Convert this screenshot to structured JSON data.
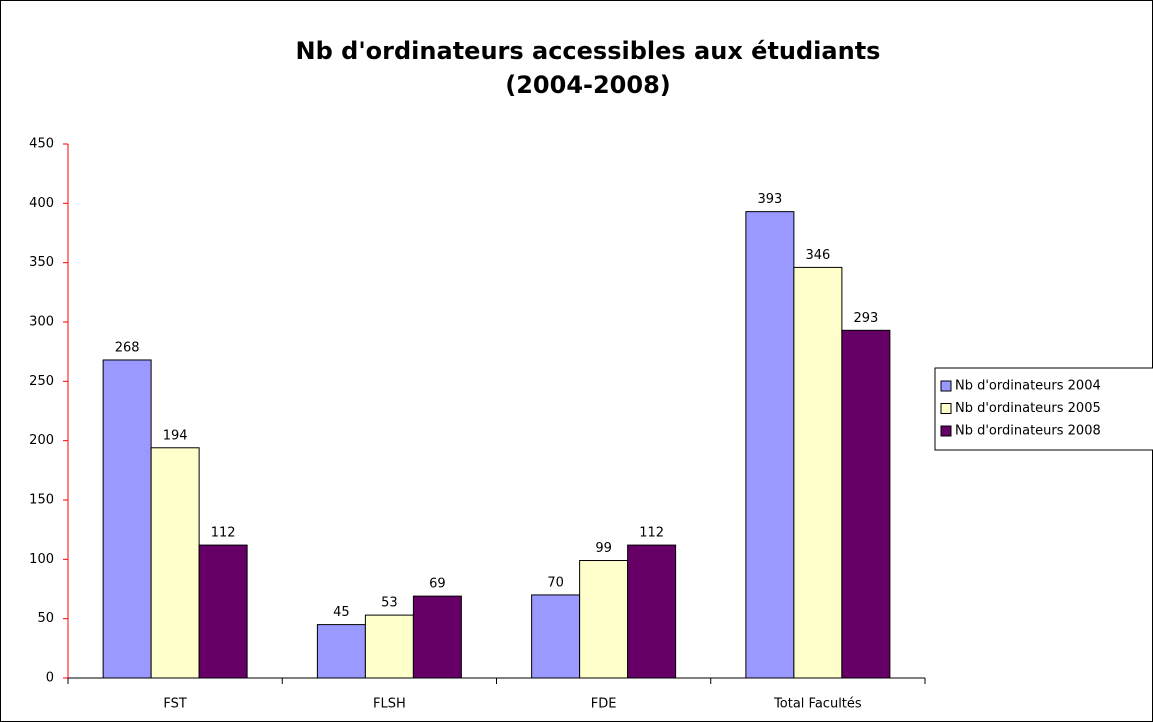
{
  "chart_data": {
    "type": "bar",
    "title": [
      "Nb d'ordinateurs accessibles aux étudiants",
      "(2004-2008)"
    ],
    "categories": [
      "FST",
      "FLSH",
      "FDE",
      "Total Facultés"
    ],
    "series": [
      {
        "name": "Nb d'ordinateurs 2004",
        "color": "#9999ff",
        "values": [
          268,
          45,
          70,
          393
        ]
      },
      {
        "name": "Nb d'ordinateurs 2005",
        "color": "#ffffcc",
        "values": [
          194,
          53,
          99,
          346
        ]
      },
      {
        "name": "Nb d'ordinateurs 2008",
        "color": "#660066",
        "values": [
          112,
          69,
          112,
          293
        ]
      }
    ],
    "ylim": [
      0,
      450
    ],
    "yticks": [
      0,
      50,
      100,
      150,
      200,
      250,
      300,
      350,
      400,
      450
    ],
    "legend": "right",
    "data_labels": true
  }
}
